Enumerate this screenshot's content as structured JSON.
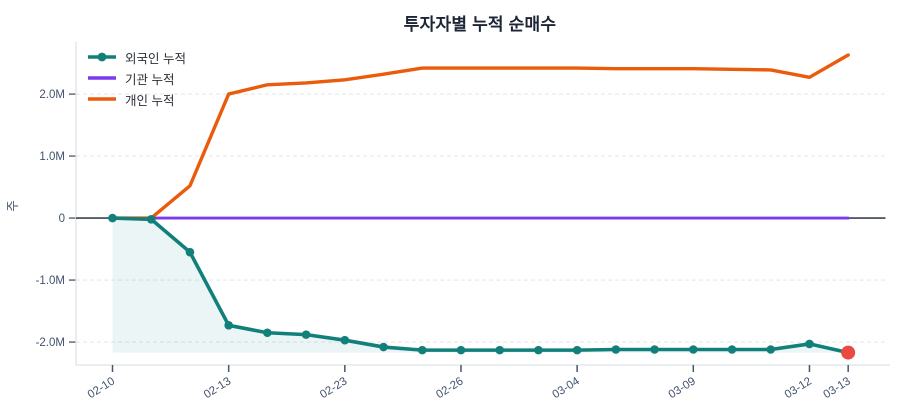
{
  "chart_data": {
    "type": "line",
    "title": "투자자별 누적 순매수",
    "ylabel": "주",
    "unit": "M (millions of shares)",
    "n_points": 20,
    "x_tick_labels": [
      "02-10",
      "02-13",
      "02-23",
      "02-26",
      "03-04",
      "03-09",
      "03-12",
      "03-13"
    ],
    "x_tick_indices": [
      0,
      3,
      6,
      9,
      12,
      15,
      18,
      19
    ],
    "y_tick_labels": [
      "2.0M",
      "1.0M",
      "0",
      "-1.0M",
      "-2.0M"
    ],
    "y_tick_values": [
      2.0,
      1.0,
      0.0,
      -1.0,
      -2.0
    ],
    "ylim": [
      -2.37,
      2.84
    ],
    "grid": true,
    "legend_position": "top-left",
    "series": [
      {
        "name": "외국인 누적",
        "color": "#12807a",
        "marker": true,
        "area_fill": true,
        "fill_color": "rgba(18,128,122,0.08)",
        "last_point_color": "#ea4a41",
        "values": [
          0.0,
          -0.02,
          -0.55,
          -1.73,
          -1.85,
          -1.88,
          -1.97,
          -2.08,
          -2.13,
          -2.13,
          -2.13,
          -2.13,
          -2.13,
          -2.12,
          -2.12,
          -2.12,
          -2.12,
          -2.12,
          -2.03,
          -2.17
        ]
      },
      {
        "name": "기관 누적",
        "color": "#7c3aed",
        "marker": false,
        "area_fill": false,
        "values": [
          0,
          0,
          0,
          0,
          0,
          0,
          0,
          0,
          0,
          0,
          0,
          0,
          0,
          0,
          0,
          0,
          0,
          0,
          0,
          0
        ]
      },
      {
        "name": "개인 누적",
        "color": "#ea5b0c",
        "marker": false,
        "area_fill": false,
        "values": [
          0.0,
          0.0,
          0.52,
          2.0,
          2.15,
          2.18,
          2.23,
          2.32,
          2.42,
          2.42,
          2.42,
          2.42,
          2.42,
          2.41,
          2.41,
          2.41,
          2.4,
          2.39,
          2.27,
          2.63
        ]
      }
    ],
    "colors": {
      "title": "#1b2534",
      "axis_text": "#42526e",
      "zero_line": "#3a4351",
      "gridline": "#e6e8eb",
      "plot_border": "#dfe3e8"
    }
  }
}
